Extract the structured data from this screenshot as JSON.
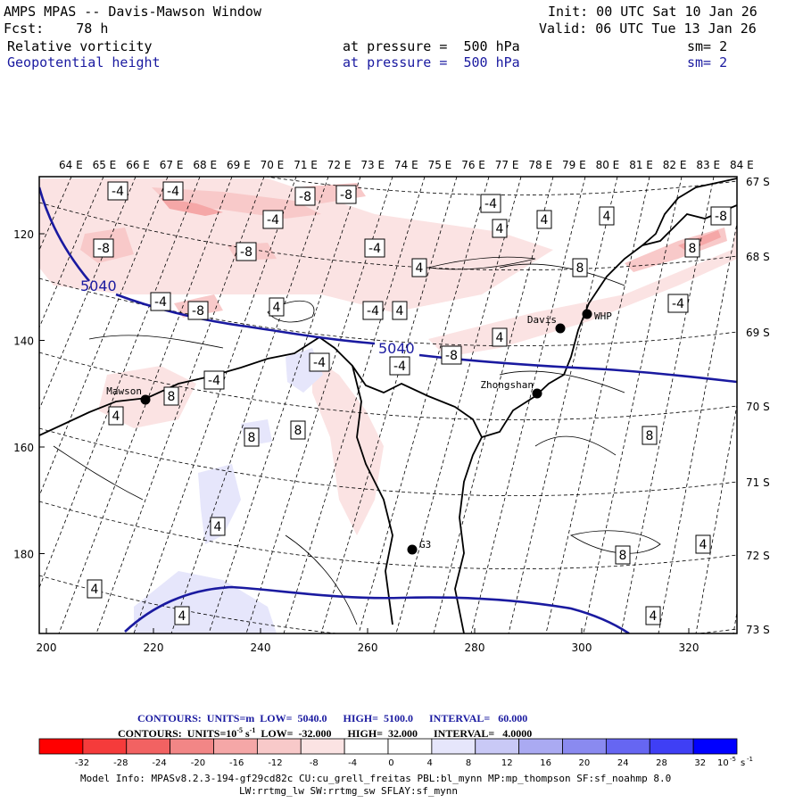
{
  "header": {
    "title": "AMPS MPAS -- Davis-Mawson Window",
    "init": "Init: 00 UTC Sat 10 Jan 26",
    "fcst": "Fcst:    78 h",
    "valid": "Valid: 06 UTC Tue 13 Jan 26",
    "field1": {
      "name": "Relative vorticity",
      "level": "at pressure =  500 hPa",
      "sm": "sm= 2"
    },
    "field2": {
      "name": "Geopotential height",
      "level": "at pressure =  500 hPa",
      "sm": "sm= 2"
    }
  },
  "map": {
    "lon_labels": [
      "64 E",
      "65 E",
      "66 E",
      "67 E",
      "68 E",
      "69 E",
      "70 E",
      "71 E",
      "72 E",
      "73 E",
      "74 E",
      "75 E",
      "76 E",
      "77 E",
      "78 E",
      "79 E",
      "80 E",
      "81 E",
      "82 E",
      "83 E",
      "84 E"
    ],
    "lat_labels": [
      "67 S",
      "68 S",
      "69 S",
      "70 S",
      "71 S",
      "72 S",
      "73 S"
    ],
    "x_ticks": [
      "200",
      "220",
      "240",
      "260",
      "280",
      "300",
      "320"
    ],
    "y_ticks": [
      "120",
      "140",
      "160",
      "180"
    ],
    "stations": [
      {
        "name": "Mawson"
      },
      {
        "name": "Davis"
      },
      {
        "name": "WHP"
      },
      {
        "name": "Zhongshan"
      },
      {
        "name": "G3"
      }
    ],
    "height_labels": [
      "5040",
      "5040"
    ],
    "vort_labels": [
      "-4",
      "-4",
      "-8",
      "-8",
      "-4",
      "-4",
      "4",
      "4",
      "-8",
      "-8",
      "-4",
      "-8",
      "-4",
      "-8",
      "-4",
      "4",
      "-4",
      "4",
      "4",
      "-8",
      "-4",
      "-4",
      "-4",
      "8",
      "4",
      "8",
      "8",
      "8",
      "4",
      "8",
      "4",
      "4",
      "4",
      "4",
      "8",
      "4",
      "8",
      "4"
    ]
  },
  "contours_info": {
    "line1": "CONTOURS:  UNITS=m  LOW=  5040.0      HIGH=  5100.0      INTERVAL=   60.000",
    "line2_a": "CONTOURS:  UNITS=10",
    "line2_exp": "-5",
    "line2_b": " s",
    "line2_exp2": "-1",
    "line2_c": "  LOW=  -32.000      HIGH=  32.000      INTERVAL=   4.0000"
  },
  "colorbar": {
    "labels": [
      "-32",
      "-28",
      "-24",
      "-20",
      "-16",
      "-12",
      "-8",
      "-4",
      "0",
      "4",
      "8",
      "12",
      "16",
      "20",
      "24",
      "28",
      "32"
    ],
    "unit": "10",
    "unit_exp": "-5",
    "unit_s": "s",
    "unit_exp2": "-1",
    "colors": [
      "#ff0000",
      "#f53b3b",
      "#f26262",
      "#f28686",
      "#f5a7a7",
      "#f8c9c9",
      "#fbe3e3",
      "#ffffff",
      "#ffffff",
      "#e6e6fb",
      "#c9c9f6",
      "#aaaaf2",
      "#8a8af0",
      "#6666f2",
      "#3f3ff5",
      "#0000ff"
    ]
  },
  "footer": {
    "line1": "Model Info: MPASv8.2.3-194-gf29cd82c CU:cu_grell_freitas PBL:bl_mynn MP:mp_thompson SF:sf_noahmp 8.0",
    "line2": "LW:rrtmg_lw SW:rrtmg_sw SFLAY:sf_mynn"
  }
}
